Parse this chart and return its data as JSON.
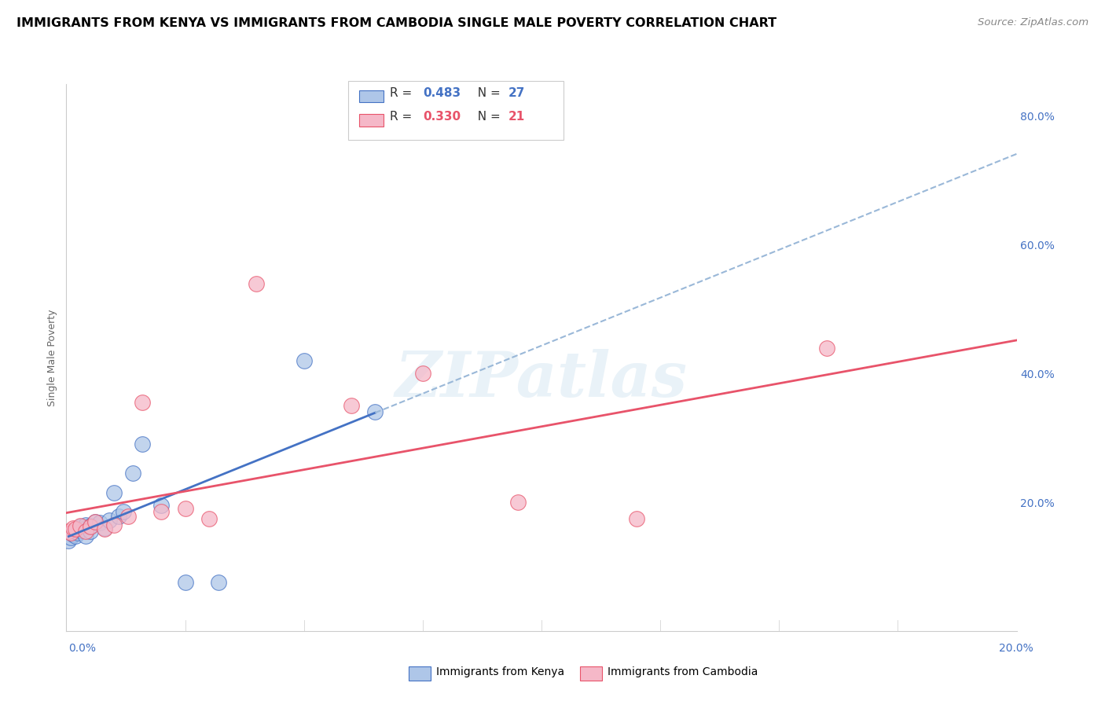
{
  "title": "IMMIGRANTS FROM KENYA VS IMMIGRANTS FROM CAMBODIA SINGLE MALE POVERTY CORRELATION CHART",
  "source": "Source: ZipAtlas.com",
  "ylabel": "Single Male Poverty",
  "xlim": [
    0.0,
    0.2
  ],
  "ylim": [
    0.0,
    0.85
  ],
  "kenya_R": 0.483,
  "kenya_N": 27,
  "cambodia_R": 0.33,
  "cambodia_N": 21,
  "kenya_color": "#aec6e8",
  "cambodia_color": "#f5b8c8",
  "kenya_line_color": "#4472c4",
  "cambodia_line_color": "#e8536a",
  "kenya_dashed_color": "#9ab8d8",
  "kenya_scatter_x": [
    0.0005,
    0.001,
    0.0015,
    0.002,
    0.002,
    0.0025,
    0.003,
    0.003,
    0.0035,
    0.004,
    0.004,
    0.005,
    0.005,
    0.006,
    0.007,
    0.008,
    0.009,
    0.01,
    0.011,
    0.012,
    0.014,
    0.016,
    0.02,
    0.025,
    0.032,
    0.05,
    0.065
  ],
  "kenya_scatter_y": [
    0.14,
    0.145,
    0.15,
    0.148,
    0.155,
    0.152,
    0.156,
    0.162,
    0.158,
    0.148,
    0.165,
    0.155,
    0.163,
    0.17,
    0.168,
    0.16,
    0.172,
    0.215,
    0.178,
    0.185,
    0.245,
    0.29,
    0.195,
    0.075,
    0.075,
    0.42,
    0.34
  ],
  "cambodia_scatter_x": [
    0.0005,
    0.001,
    0.0015,
    0.002,
    0.003,
    0.004,
    0.005,
    0.006,
    0.008,
    0.01,
    0.013,
    0.016,
    0.02,
    0.025,
    0.03,
    0.04,
    0.06,
    0.075,
    0.095,
    0.12,
    0.16
  ],
  "cambodia_scatter_y": [
    0.155,
    0.152,
    0.16,
    0.158,
    0.163,
    0.155,
    0.162,
    0.17,
    0.158,
    0.165,
    0.178,
    0.355,
    0.185,
    0.19,
    0.175,
    0.54,
    0.35,
    0.4,
    0.2,
    0.175,
    0.44
  ],
  "legend_kenya_label": "Immigrants from Kenya",
  "legend_cambodia_label": "Immigrants from Cambodia",
  "watermark": "ZIPatlas",
  "title_fontsize": 11.5,
  "source_fontsize": 9.5,
  "axis_label_fontsize": 9,
  "tick_fontsize": 10
}
